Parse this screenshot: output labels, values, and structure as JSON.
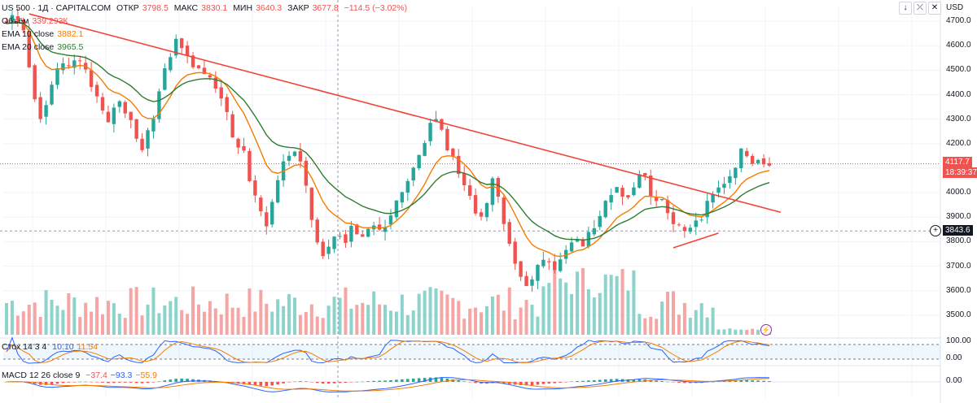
{
  "header": {
    "symbol": "US 500 · 1Д · CAPITALCOM",
    "open_label": "ОТКР",
    "open_value": "3798.5",
    "high_label": "МАКС",
    "high_value": "3830.1",
    "low_label": "МИН",
    "low_value": "3640.3",
    "close_label": "ЗАКР",
    "close_value": "3677.8",
    "change_value": "−114.5 (−3.02%)"
  },
  "legend": {
    "volume_label": "Объём",
    "volume_value": "339.293К",
    "ema10_label": "EMA 10 close",
    "ema10_value": "3882.1",
    "ema20_label": "EMA 20 close",
    "ema20_value": "3965.5",
    "stoch_label": "Стох 14 3 4",
    "stoch_k": "10.10",
    "stoch_d": "11.54",
    "macd_label": "MACD 12 26 close 9",
    "macd_hist": "−37.4",
    "macd_line": "−93.3",
    "macd_signal": "−55.9"
  },
  "toolbar": {
    "down_icon": "↓",
    "collapse_icon": "⤫",
    "close_icon": "✕",
    "currency": "USD"
  },
  "price_axis": {
    "ticks": [
      "4700.0",
      "4600.0",
      "4500.0",
      "4400.0",
      "4300.0",
      "4200.0",
      "4100.0",
      "4000.0",
      "3900.0",
      "3800.0",
      "3700.0",
      "3600.0",
      "3500.0"
    ],
    "last_price": "4117.7",
    "countdown": "18:39:37",
    "cursor_price": "3843.6"
  },
  "stoch_axis": {
    "ticks": [
      "100.00",
      "0.00"
    ]
  },
  "macd_axis": {
    "ticks": [
      "0.00"
    ]
  },
  "colors": {
    "up": "#26a69a",
    "down": "#ef5350",
    "ema10": "#f57c00",
    "ema20": "#2e7d32",
    "trend": "#f44336",
    "stoch_k": "#2962ff",
    "stoch_d": "#f57c00"
  },
  "chart_data": {
    "type": "candlestick",
    "instrument": "US 500",
    "timeframe": "1Д",
    "ylim": [
      3420,
      4760
    ],
    "price_path": [
      4690,
      4720,
      4705,
      4660,
      4520,
      4390,
      4310,
      4360,
      4440,
      4500,
      4520,
      4510,
      4540,
      4530,
      4500,
      4440,
      4390,
      4330,
      4280,
      4350,
      4370,
      4330,
      4300,
      4220,
      4180,
      4250,
      4300,
      4420,
      4500,
      4560,
      4630,
      4600,
      4560,
      4520,
      4510,
      4480,
      4470,
      4430,
      4390,
      4320,
      4220,
      4190,
      4170,
      4050,
      3980,
      3920,
      3870,
      3960,
      4050,
      4130,
      4150,
      4170,
      4130,
      4020,
      3890,
      3800,
      3750,
      3770,
      3820,
      3830,
      3800,
      3870,
      3830,
      3820,
      3850,
      3870,
      3840,
      3870,
      3900,
      3960,
      4000,
      4050,
      4100,
      4150,
      4210,
      4290,
      4300,
      4260,
      4180,
      4150,
      4080,
      4030,
      3990,
      3920,
      3900,
      3950,
      4060,
      3980,
      3880,
      3800,
      3720,
      3660,
      3620,
      3640,
      3700,
      3720,
      3720,
      3680,
      3730,
      3760,
      3800,
      3810,
      3780,
      3830,
      3860,
      3900,
      3960,
      4000,
      4020,
      3990,
      3990,
      4020,
      4080,
      4070,
      3980,
      3970,
      3970,
      3920,
      3870,
      3860,
      3840,
      3860,
      3890,
      3900,
      3960,
      4000,
      4020,
      4040,
      4060,
      4100,
      4170,
      4150,
      4120,
      4140,
      4120,
      4118
    ],
    "trendlines": [
      {
        "from_index": 4,
        "from_price": 4730,
        "to_index": 137,
        "to_price": 3920
      },
      {
        "from_index": 118,
        "from_price": 3775,
        "to_index": 126,
        "to_price": 3835
      }
    ],
    "last_price": 4117.7,
    "cursor_price": 3843.6,
    "stochastic": {
      "k": 10.1,
      "d": 11.54,
      "range": [
        0,
        100
      ]
    },
    "macd": {
      "histogram": -37.4,
      "macd": -93.3,
      "signal": -55.9
    }
  }
}
